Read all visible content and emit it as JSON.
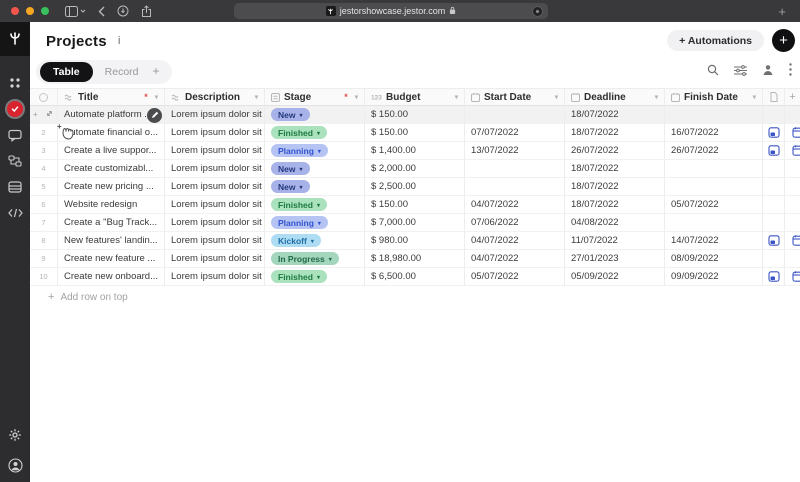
{
  "browser": {
    "url": "jestorshowcase.jestor.com",
    "traffic_colors": [
      "#f4564e",
      "#f5a623",
      "#39c25c"
    ],
    "new_tab_label": "+"
  },
  "sidebar": {
    "items": [
      {
        "name": "apps-grid-icon"
      },
      {
        "name": "record-check-icon",
        "active": true,
        "color": "#d9232e"
      },
      {
        "name": "chat-icon"
      },
      {
        "name": "automation-flow-icon"
      },
      {
        "name": "database-icon"
      },
      {
        "name": "code-icon"
      }
    ],
    "bottom": [
      {
        "name": "settings-gear-icon"
      },
      {
        "name": "user-avatar-icon"
      }
    ]
  },
  "header": {
    "title": "Projects",
    "info": "i",
    "automations_label": "+ Automations",
    "new_record_label": "+"
  },
  "tabs": {
    "table": "Table",
    "record": "Record",
    "add": "+"
  },
  "table": {
    "columns": [
      {
        "type": "select"
      },
      {
        "label": "Title",
        "type": "text",
        "required": true
      },
      {
        "label": "Description",
        "type": "text",
        "required": false
      },
      {
        "label": "Stage",
        "type": "list",
        "required": true
      },
      {
        "label": "Budget",
        "type": "number",
        "required": false
      },
      {
        "label": "Start Date",
        "type": "date",
        "required": false
      },
      {
        "label": "Deadline",
        "type": "date",
        "required": false
      },
      {
        "label": "Finish Date",
        "type": "date",
        "required": false
      },
      {
        "type": "page"
      },
      {
        "type": "plus",
        "label": "+"
      }
    ],
    "rows": [
      {
        "num": "1",
        "title": "Automate platform ...",
        "desc": "Lorem ipsum dolor sit am",
        "stage": "New",
        "budget": "$ 150.00",
        "start": "",
        "deadline": "18/07/2022",
        "finish": "",
        "files": false,
        "hover": true,
        "editing": true
      },
      {
        "num": "2",
        "title": "Automate financial o...",
        "desc": "Lorem ipsum dolor sit am",
        "stage": "Finished",
        "budget": "$ 150.00",
        "start": "07/07/2022",
        "deadline": "18/07/2022",
        "finish": "16/07/2022",
        "files": true
      },
      {
        "num": "3",
        "title": "Create a live suppor...",
        "desc": "Lorem ipsum dolor sit am",
        "stage": "Planning",
        "budget": "$ 1,400.00",
        "start": "13/07/2022",
        "deadline": "26/07/2022",
        "finish": "26/07/2022",
        "files": true
      },
      {
        "num": "4",
        "title": "Create customizabl...",
        "desc": "Lorem ipsum dolor sit am",
        "stage": "New",
        "budget": "$ 2,000.00",
        "start": "",
        "deadline": "18/07/2022",
        "finish": "",
        "files": false
      },
      {
        "num": "5",
        "title": "Create new pricing ...",
        "desc": "Lorem ipsum dolor sit am",
        "stage": "New",
        "budget": "$ 2,500.00",
        "start": "",
        "deadline": "18/07/2022",
        "finish": "",
        "files": false
      },
      {
        "num": "6",
        "title": "Website redesign",
        "desc": "Lorem ipsum dolor sit am",
        "stage": "Finished",
        "budget": "$ 150.00",
        "start": "04/07/2022",
        "deadline": "18/07/2022",
        "finish": "05/07/2022",
        "files": false
      },
      {
        "num": "7",
        "title": "Create a \"Bug Track...",
        "desc": "Lorem ipsum dolor sit am",
        "stage": "Planning",
        "budget": "$ 7,000.00",
        "start": "07/06/2022",
        "deadline": "04/08/2022",
        "finish": "",
        "files": false
      },
      {
        "num": "8",
        "title": "New features' landin...",
        "desc": "Lorem ipsum dolor sit am",
        "stage": "Kickoff",
        "budget": "$ 980.00",
        "start": "04/07/2022",
        "deadline": "11/07/2022",
        "finish": "14/07/2022",
        "files": true
      },
      {
        "num": "9",
        "title": "Create new feature ...",
        "desc": "Lorem ipsum dolor sit am",
        "stage": "In Progress",
        "budget": "$ 18,980.00",
        "start": "04/07/2022",
        "deadline": "27/01/2023",
        "finish": "08/09/2022",
        "files": false
      },
      {
        "num": "10",
        "title": "Create new onboard...",
        "desc": "Lorem ipsum dolor sit am",
        "stage": "Finished",
        "budget": "$ 6,500.00",
        "start": "05/07/2022",
        "deadline": "05/09/2022",
        "finish": "09/09/2022",
        "files": true
      }
    ],
    "add_row_label": "Add row on top",
    "add_row_plus": "+"
  },
  "stage_styles": {
    "New": {
      "bg": "#a7b3e8",
      "fg": "#26387f"
    },
    "Finished": {
      "bg": "#aae2bd",
      "fg": "#1d7a40"
    },
    "Planning": {
      "bg": "#b6c4f4",
      "fg": "#3253cf"
    },
    "Kickoff": {
      "bg": "#addcf3",
      "fg": "#1f6da5"
    },
    "In Progress": {
      "bg": "#a4d5bd",
      "fg": "#206b46"
    }
  }
}
